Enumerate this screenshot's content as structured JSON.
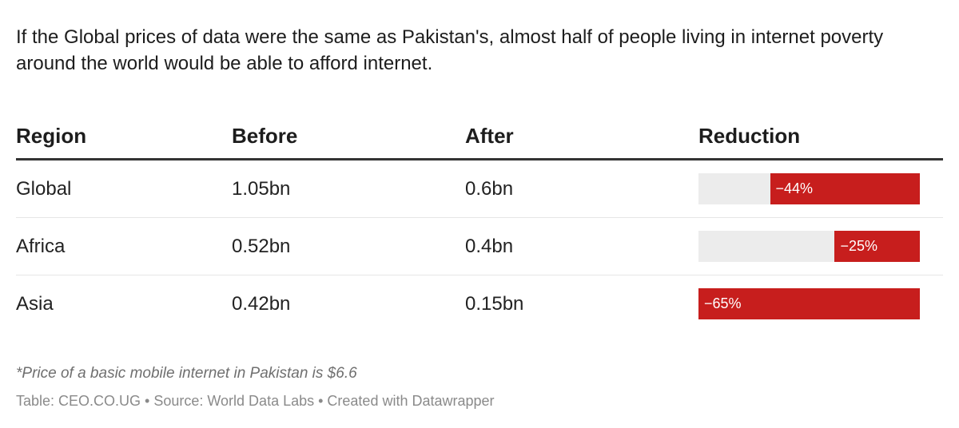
{
  "headline": "If the Global prices of data were the same as Pakistan's, almost half of people living in internet poverty around the world would be able to afford internet.",
  "colors": {
    "bar": "#c71e1d",
    "track": "#ececec",
    "rule": "#333333"
  },
  "chart_data": {
    "type": "table",
    "columns": [
      "Region",
      "Before",
      "After",
      "Reduction"
    ],
    "rows": [
      {
        "region": "Global",
        "before": "1.05bn",
        "after": "0.6bn",
        "reduction_label": "−44%",
        "reduction": -44
      },
      {
        "region": "Africa",
        "before": "0.52bn",
        "after": "0.4bn",
        "reduction_label": "−25%",
        "reduction": -25
      },
      {
        "region": "Asia",
        "before": "0.42bn",
        "after": "0.15bn",
        "reduction_label": "−65%",
        "reduction": -65
      }
    ],
    "reduction_range": [
      -65,
      0
    ]
  },
  "notes": "*Price of a basic mobile internet in Pakistan is $6.6",
  "footer": "Table: CEO.CO.UG • Source: World Data Labs • Created with Datawrapper"
}
